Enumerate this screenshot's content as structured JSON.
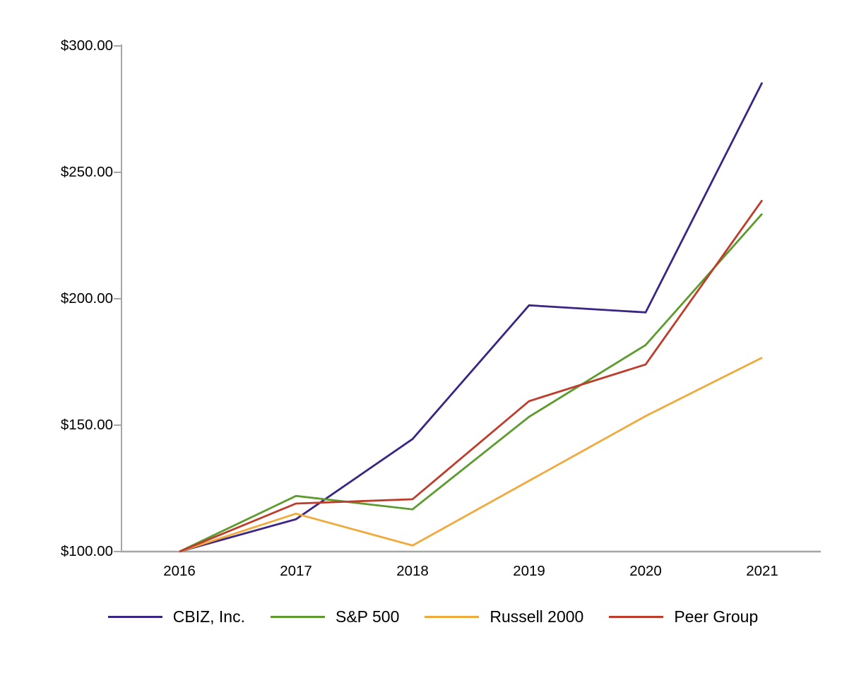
{
  "chart_data": {
    "type": "line",
    "title": "",
    "xlabel": "",
    "ylabel": "",
    "x_labels": [
      "2016",
      "2017",
      "2018",
      "2019",
      "2020",
      "2021"
    ],
    "y_ticks": [
      {
        "label": "$300.00",
        "value": 300
      },
      {
        "label": "$250.00",
        "value": 250
      },
      {
        "label": "$200.00",
        "value": 200
      },
      {
        "label": "$150.00",
        "value": 150
      },
      {
        "label": "$100.00",
        "value": 100
      }
    ],
    "ylim": [
      100,
      300
    ],
    "grid": false,
    "legend_position": "bottom",
    "axis_color": "#A6A6A6",
    "text_color": "#000000",
    "series": [
      {
        "name": "CBIZ, Inc.",
        "color": "#3B2484",
        "values": [
          100,
          112.8,
          144.5,
          197.4,
          194.6,
          285.5
        ]
      },
      {
        "name": "S&P 500",
        "color": "#5C9B2D",
        "values": [
          100,
          122.0,
          116.7,
          153.3,
          181.7,
          233.6
        ]
      },
      {
        "name": "Russell 2000",
        "color": "#F2A93C",
        "values": [
          100,
          115.0,
          102.4,
          128.0,
          153.6,
          176.7
        ]
      },
      {
        "name": "Peer Group",
        "color": "#BE3C2B",
        "values": [
          100,
          119.0,
          120.7,
          159.5,
          174.0,
          239.0
        ]
      }
    ]
  }
}
